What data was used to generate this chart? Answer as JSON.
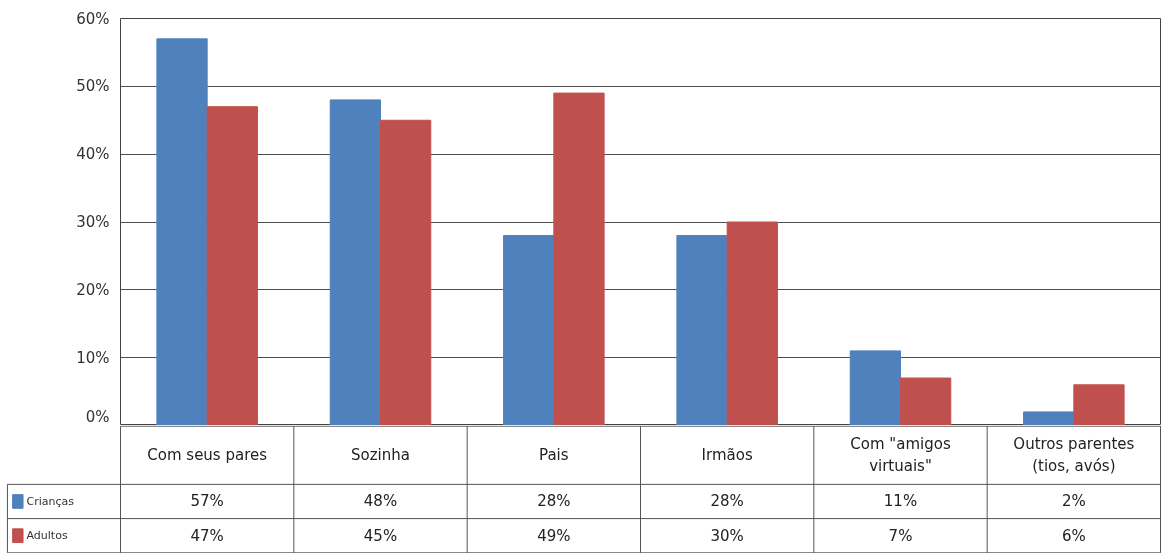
{
  "chart_data": {
    "type": "bar",
    "categories": [
      "Com seus pares",
      "Sozinha",
      "Pais",
      "Irmãos",
      "Com \"amigos virtuais\"",
      "Outros parentes (tios, avós)"
    ],
    "series": [
      {
        "name": "Crianças",
        "color": "#4f81bd",
        "values": [
          57,
          48,
          28,
          28,
          11,
          2
        ],
        "value_labels": [
          "57%",
          "48%",
          "28%",
          "28%",
          "11%",
          "2%"
        ]
      },
      {
        "name": "Adultos",
        "color": "#c0504d",
        "values": [
          47,
          45,
          49,
          30,
          7,
          6
        ],
        "value_labels": [
          "47%",
          "45%",
          "49%",
          "30%",
          "7%",
          "6%"
        ]
      }
    ],
    "ylim": [
      0,
      60
    ],
    "yticks": [
      {
        "value": 0,
        "label": "0%"
      },
      {
        "value": 10,
        "label": "10%"
      },
      {
        "value": 20,
        "label": "20%"
      },
      {
        "value": 30,
        "label": "30%"
      },
      {
        "value": 40,
        "label": "40%"
      },
      {
        "value": 50,
        "label": "50%"
      },
      {
        "value": 60,
        "label": "60%"
      }
    ],
    "grid": "y",
    "legend": "bottom"
  }
}
